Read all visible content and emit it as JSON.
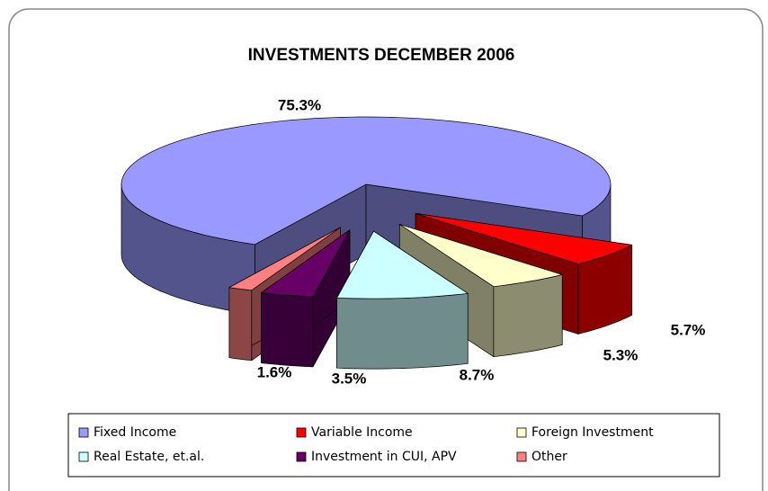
{
  "chart_data": {
    "type": "pie3d",
    "title": "INVESTMENTS DECEMBER 2006",
    "categories": [
      "Fixed Income",
      "Variable Income",
      "Foreign Investment",
      "Real Estate, et.al.",
      "Investment in CUI, APV",
      "Other"
    ],
    "values": [
      75.3,
      5.7,
      5.3,
      8.7,
      3.5,
      1.6
    ],
    "value_labels": [
      "75.3%",
      "5.7%",
      "5.3%",
      "8.7%",
      "3.5%",
      "1.6%"
    ],
    "colors": [
      "#9999ff",
      "#ff0000",
      "#ffffcc",
      "#ccffff",
      "#660066",
      "#ff8080"
    ],
    "legend": "bottom"
  }
}
